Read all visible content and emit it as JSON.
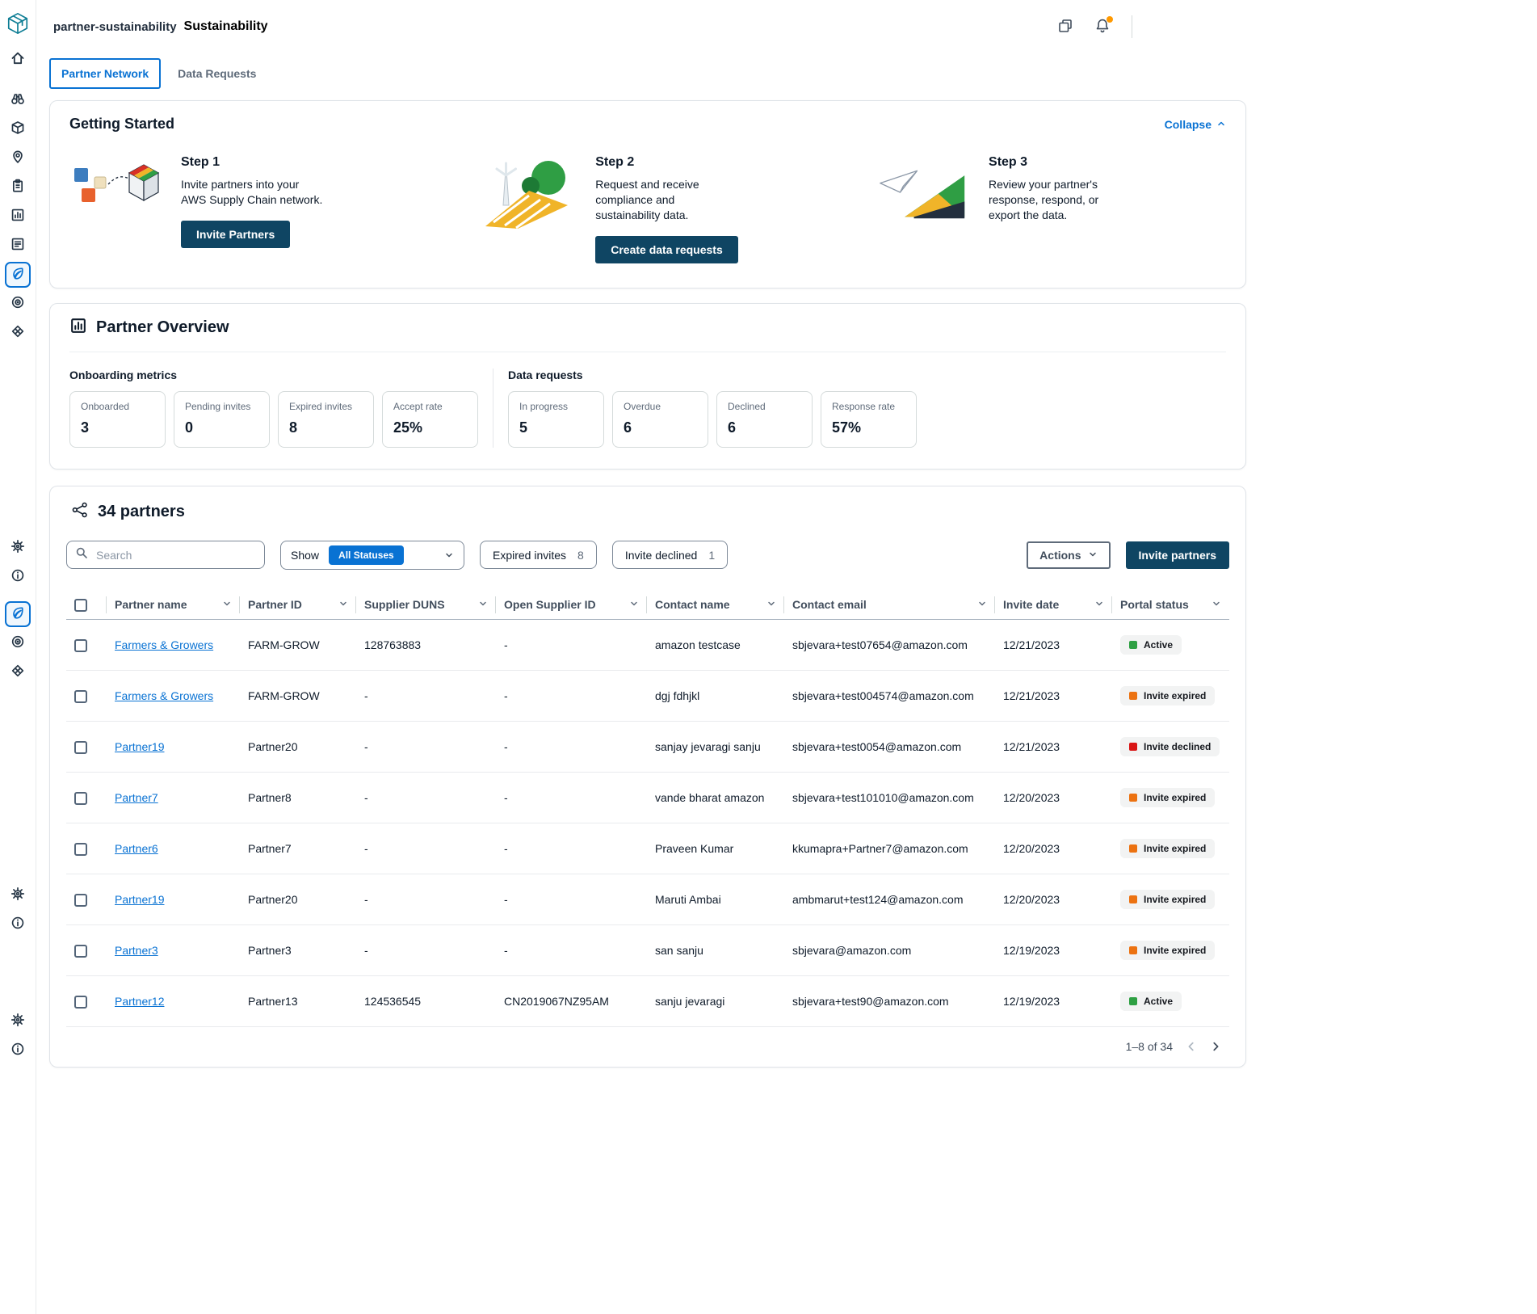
{
  "header": {
    "app_name": "partner-sustainability",
    "title": "Sustainability"
  },
  "tabs": [
    {
      "label": "Partner Network",
      "active": true
    },
    {
      "label": "Data Requests",
      "active": false
    }
  ],
  "getting_started": {
    "title": "Getting Started",
    "collapse_label": "Collapse",
    "steps": [
      {
        "title": "Step 1",
        "description": "Invite partners into your AWS Supply Chain network.",
        "button": "Invite Partners"
      },
      {
        "title": "Step 2",
        "description": "Request and receive compliance and sustainability data.",
        "button": "Create data requests"
      },
      {
        "title": "Step 3",
        "description": "Review your partner's response, respond, or export the data.",
        "button": ""
      }
    ]
  },
  "partner_overview": {
    "title": "Partner Overview",
    "groups": [
      {
        "title": "Onboarding metrics",
        "metrics": [
          {
            "label": "Onboarded",
            "value": "3"
          },
          {
            "label": "Pending invites",
            "value": "0"
          },
          {
            "label": "Expired invites",
            "value": "8"
          },
          {
            "label": "Accept rate",
            "value": "25%"
          }
        ]
      },
      {
        "title": "Data requests",
        "metrics": [
          {
            "label": "In progress",
            "value": "5"
          },
          {
            "label": "Overdue",
            "value": "6"
          },
          {
            "label": "Declined",
            "value": "6"
          },
          {
            "label": "Response rate",
            "value": "57%"
          }
        ]
      }
    ]
  },
  "partners": {
    "title": "34 partners",
    "search_placeholder": "Search",
    "show_label": "Show",
    "status_filter_value": "All Statuses",
    "filters": [
      {
        "label": "Expired invites",
        "count": "8"
      },
      {
        "label": "Invite declined",
        "count": "1"
      }
    ],
    "actions_label": "Actions",
    "invite_label": "Invite partners",
    "pagination": "1–8 of 34",
    "table": {
      "columns": [
        "Partner name",
        "Partner ID",
        "Supplier DUNS",
        "Open Supplier ID",
        "Contact name",
        "Contact email",
        "Invite date",
        "Portal status"
      ],
      "rows": [
        {
          "partner_name": "Farmers & Growers",
          "partner_id": "FARM-GROW",
          "supplier_duns": "128763883",
          "open_supplier_id": "-",
          "contact_name": "amazon testcase",
          "contact_email": "sbjevara+test07654@amazon.com",
          "invite_date": "12/21/2023",
          "portal_status": "Active"
        },
        {
          "partner_name": "Farmers & Growers",
          "partner_id": "FARM-GROW",
          "supplier_duns": "-",
          "open_supplier_id": "-",
          "contact_name": "dgj fdhjkl",
          "contact_email": "sbjevara+test004574@amazon.com",
          "invite_date": "12/21/2023",
          "portal_status": "Invite expired"
        },
        {
          "partner_name": "Partner19",
          "partner_id": "Partner20",
          "supplier_duns": "-",
          "open_supplier_id": "-",
          "contact_name": "sanjay jevaragi sanju",
          "contact_email": "sbjevara+test0054@amazon.com",
          "invite_date": "12/21/2023",
          "portal_status": "Invite declined"
        },
        {
          "partner_name": "Partner7",
          "partner_id": "Partner8",
          "supplier_duns": "-",
          "open_supplier_id": "-",
          "contact_name": "vande bharat amazon",
          "contact_email": "sbjevara+test101010@amazon.com",
          "invite_date": "12/20/2023",
          "portal_status": "Invite expired"
        },
        {
          "partner_name": "Partner6",
          "partner_id": "Partner7",
          "supplier_duns": "-",
          "open_supplier_id": "-",
          "contact_name": "Praveen Kumar",
          "contact_email": "kkumapra+Partner7@amazon.com",
          "invite_date": "12/20/2023",
          "portal_status": "Invite expired"
        },
        {
          "partner_name": "Partner19",
          "partner_id": "Partner20",
          "supplier_duns": "-",
          "open_supplier_id": "-",
          "contact_name": "Maruti Ambai",
          "contact_email": "ambmarut+test124@amazon.com",
          "invite_date": "12/20/2023",
          "portal_status": "Invite expired"
        },
        {
          "partner_name": "Partner3",
          "partner_id": "Partner3",
          "supplier_duns": "-",
          "open_supplier_id": "-",
          "contact_name": "san sanju",
          "contact_email": "sbjevara@amazon.com",
          "invite_date": "12/19/2023",
          "portal_status": "Invite expired"
        },
        {
          "partner_name": "Partner12",
          "partner_id": "Partner13",
          "supplier_duns": "124536545",
          "open_supplier_id": "CN2019067NZ95AM",
          "contact_name": "sanju jevaragi",
          "contact_email": "sbjevara+test90@amazon.com",
          "invite_date": "12/19/2023",
          "portal_status": "Active"
        }
      ]
    }
  },
  "sidebar": {
    "groups": [
      [
        {
          "icon": "home"
        }
      ],
      [
        {
          "icon": "binoculars"
        },
        {
          "icon": "package"
        },
        {
          "icon": "location"
        },
        {
          "icon": "clipboard"
        },
        {
          "icon": "bar-chart"
        },
        {
          "icon": "news"
        },
        {
          "icon": "leaf",
          "selected": true
        },
        {
          "icon": "target"
        },
        {
          "icon": "cube"
        }
      ],
      [
        {
          "icon": "gear"
        },
        {
          "icon": "info"
        }
      ],
      [
        {
          "icon": "leaf",
          "selected": true
        },
        {
          "icon": "target"
        },
        {
          "icon": "cube"
        }
      ],
      [
        {
          "icon": "gear"
        },
        {
          "icon": "info"
        }
      ],
      [
        {
          "icon": "gear"
        },
        {
          "icon": "info"
        }
      ]
    ]
  },
  "colors": {
    "accent": "#0972d3",
    "primary_button": "#0f4563",
    "badge_bg": "#f2f3f3",
    "notification_dot": "#ff9900",
    "status": {
      "Active": "#2ea043",
      "Invite expired": "#ec7211",
      "Invite declined": "#d91515"
    }
  }
}
